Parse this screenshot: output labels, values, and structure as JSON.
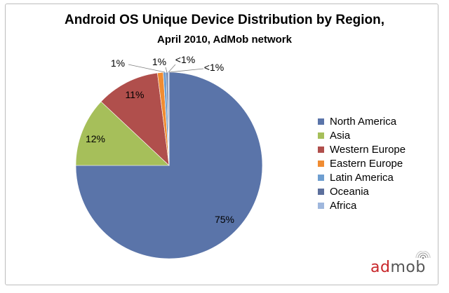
{
  "chart_data": {
    "type": "pie",
    "title": "Android OS Unique Device Distribution by Region,",
    "subtitle": "April 2010, AdMob network",
    "legend_position": "right",
    "slices": [
      {
        "name": "North America",
        "value": 75,
        "label": "75%",
        "color": "#5a74a9"
      },
      {
        "name": "Asia",
        "value": 12,
        "label": "12%",
        "color": "#a6bf5a"
      },
      {
        "name": "Western Europe",
        "value": 11,
        "label": "11%",
        "color": "#b04f4c"
      },
      {
        "name": "Eastern Europe",
        "value": 1,
        "label": "1%",
        "color": "#f08c32"
      },
      {
        "name": "Latin America",
        "value": 0.5,
        "label": "1%",
        "color": "#6e9ed0"
      },
      {
        "name": "Oceania",
        "value": 0.3,
        "label": "<1%",
        "color": "#5c6f9c"
      },
      {
        "name": "Africa",
        "value": 0.2,
        "label": "<1%",
        "color": "#9fb7dd"
      }
    ]
  },
  "branding": {
    "logo_ad": "ad",
    "logo_mob": "mob"
  }
}
